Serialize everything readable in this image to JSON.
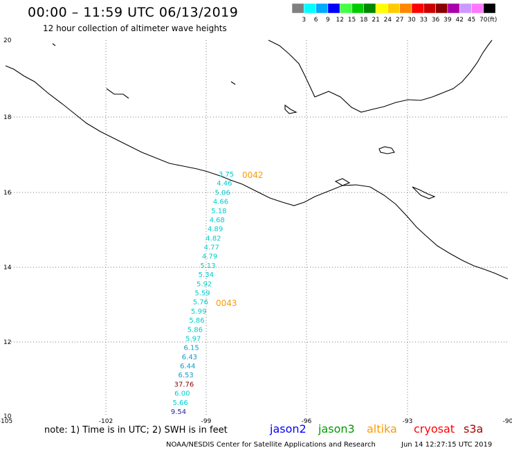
{
  "header": {
    "title": "00:00 – 11:59 UTC 06/13/2019",
    "subtitle": "12 hour collection of altimeter wave heights"
  },
  "colorbar": {
    "unit": "(ft)",
    "labels": [
      "3",
      "6",
      "9",
      "12",
      "15",
      "18",
      "21",
      "24",
      "27",
      "30",
      "33",
      "36",
      "39",
      "42",
      "45",
      "70"
    ],
    "colors": [
      "#808080",
      "#00ffff",
      "#00aaff",
      "#0000ff",
      "#44ff44",
      "#00cc00",
      "#008800",
      "#ffff00",
      "#ffcc00",
      "#ff8800",
      "#ff0000",
      "#cc0000",
      "#880000",
      "#aa00aa",
      "#cc99ff",
      "#ff77ff",
      "#000000"
    ]
  },
  "axes": {
    "lon_labels": [
      "-105",
      "-102",
      "-99",
      "-96",
      "-93",
      "-90"
    ],
    "lat_labels": [
      "20",
      "18",
      "16",
      "14",
      "12",
      "10"
    ]
  },
  "passes": [
    {
      "label": "0042",
      "color": "#ff9900"
    },
    {
      "label": "0043",
      "color": "#ff9900"
    }
  ],
  "wave_heights": [
    {
      "value": "3.75",
      "color": "#00cccc"
    },
    {
      "value": "4.46",
      "color": "#00cccc"
    },
    {
      "value": "5.06",
      "color": "#00cccc"
    },
    {
      "value": "4.66",
      "color": "#00cccc"
    },
    {
      "value": "5.18",
      "color": "#00cccc"
    },
    {
      "value": "4.68",
      "color": "#00cccc"
    },
    {
      "value": "4.89",
      "color": "#00cccc"
    },
    {
      "value": "4.82",
      "color": "#00cccc"
    },
    {
      "value": "4.77",
      "color": "#00cccc"
    },
    {
      "value": "4.79",
      "color": "#00cccc"
    },
    {
      "value": "5.13",
      "color": "#00cccc"
    },
    {
      "value": "5.34",
      "color": "#00cccc"
    },
    {
      "value": "5.92",
      "color": "#00cccc"
    },
    {
      "value": "5.59",
      "color": "#00cccc"
    },
    {
      "value": "5.76",
      "color": "#00cccc"
    },
    {
      "value": "5.99",
      "color": "#00cccc"
    },
    {
      "value": "5.86",
      "color": "#00cccc"
    },
    {
      "value": "5.86",
      "color": "#00cccc"
    },
    {
      "value": "5.97",
      "color": "#00cccc"
    },
    {
      "value": "6.15",
      "color": "#1199cc"
    },
    {
      "value": "6.43",
      "color": "#1199cc"
    },
    {
      "value": "6.44",
      "color": "#1199cc"
    },
    {
      "value": "6.53",
      "color": "#1199cc"
    },
    {
      "value": "37.76",
      "color": "#880000"
    },
    {
      "value": "6.00",
      "color": "#00cccc"
    },
    {
      "value": "5.66",
      "color": "#00cccc"
    },
    {
      "value": "9.54",
      "color": "#2222aa"
    }
  ],
  "footer": {
    "note": "note: 1) Time is in UTC; 2) SWH is in feet",
    "satellites": [
      {
        "name": "jason2",
        "color": "#0000ff"
      },
      {
        "name": "jason3",
        "color": "#009900"
      },
      {
        "name": "altika",
        "color": "#ff9900"
      },
      {
        "name": "cryosat",
        "color": "#ff0000"
      },
      {
        "name": "s3a",
        "color": "#aa0000"
      }
    ],
    "credit": "NOAA/NESDIS Center for Satellite Applications and Research",
    "timestamp": "Jun 14 12:27:15 UTC 2019"
  }
}
